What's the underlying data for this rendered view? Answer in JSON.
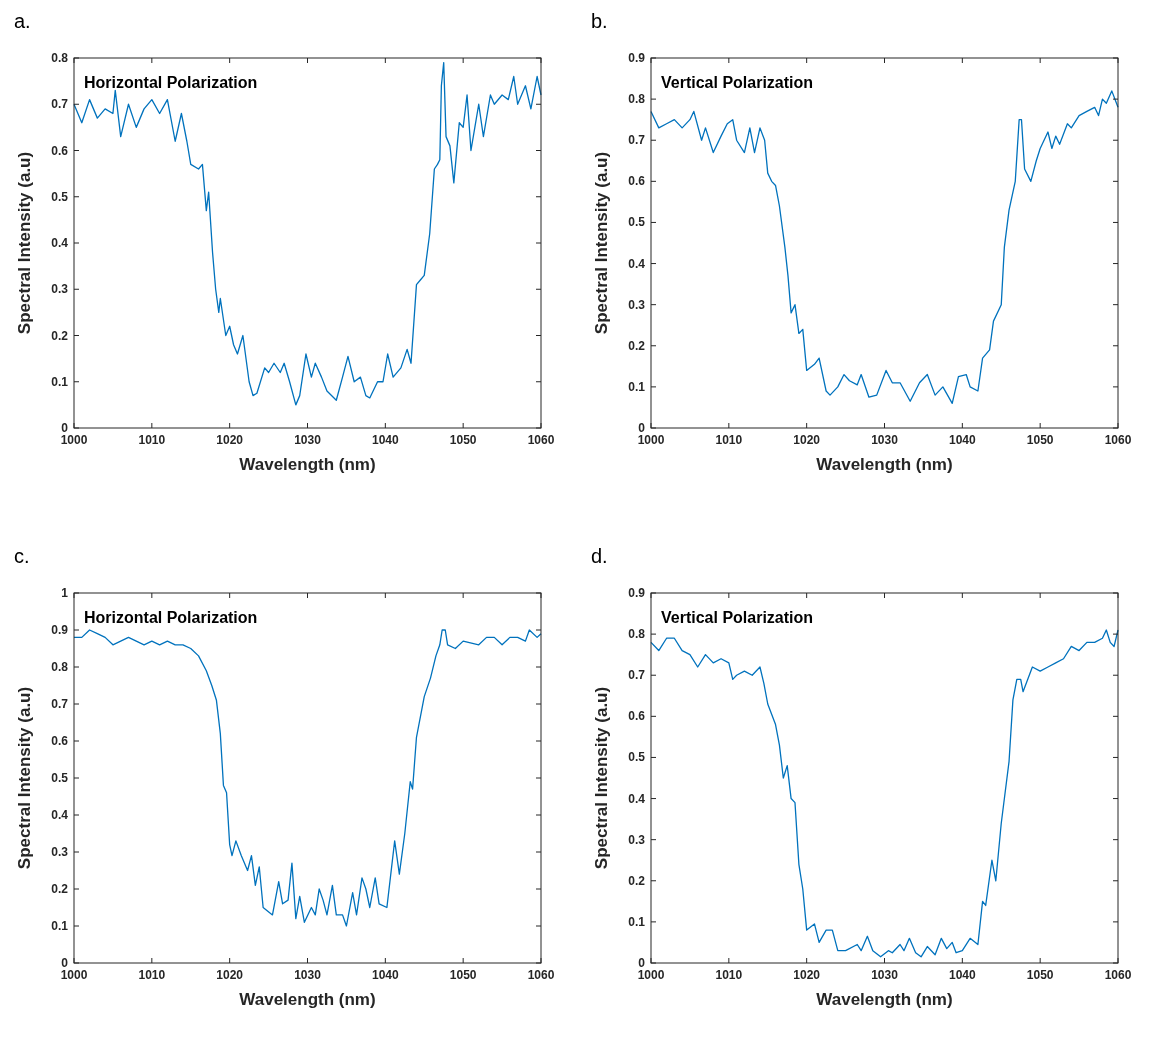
{
  "chart_data": [
    {
      "type": "line",
      "title": "a.",
      "annotations": [
        "Horizontal Polarization"
      ],
      "xlabel": "Wavelength (nm)",
      "ylabel": "Spectral Intensity (a.u)",
      "xlim": [
        1000,
        1060
      ],
      "xticks": [
        1000,
        1010,
        1020,
        1030,
        1040,
        1050,
        1060
      ],
      "ylim": [
        0,
        0.8
      ],
      "yticks": [
        0,
        0.1,
        0.2,
        0.3,
        0.4,
        0.5,
        0.6,
        0.7,
        0.8
      ],
      "series": [
        {
          "color": "#0072bd",
          "x": [
            1000,
            1001,
            1002,
            1003,
            1004,
            1005,
            1005.3,
            1006,
            1007,
            1008,
            1009,
            1010,
            1011,
            1012,
            1013,
            1013.8,
            1014.5,
            1015,
            1016,
            1016.5,
            1017,
            1017.3,
            1017.8,
            1018.2,
            1018.6,
            1018.8,
            1019.5,
            1020,
            1020.5,
            1021,
            1021.7,
            1022.5,
            1023,
            1023.5,
            1024.5,
            1025,
            1025.7,
            1026.5,
            1027,
            1027.7,
            1028.5,
            1029,
            1029.8,
            1030.5,
            1031,
            1031.8,
            1032.5,
            1033.7,
            1034.5,
            1035.2,
            1036,
            1036.8,
            1037.5,
            1038,
            1039,
            1039.7,
            1040.3,
            1041,
            1042,
            1042.8,
            1043.3,
            1044,
            1044.5,
            1045,
            1045.7,
            1046.3,
            1046.7,
            1047,
            1047.2,
            1047.5,
            1047.8,
            1048.3,
            1048.8,
            1049.5,
            1050,
            1050.5,
            1051,
            1051.5,
            1052,
            1052.6,
            1053.5,
            1054,
            1055,
            1055.8,
            1056.5,
            1057,
            1058,
            1058.7,
            1059.5,
            1060
          ],
          "values": [
            0.7,
            0.66,
            0.71,
            0.67,
            0.69,
            0.68,
            0.73,
            0.63,
            0.7,
            0.65,
            0.69,
            0.71,
            0.68,
            0.71,
            0.62,
            0.68,
            0.62,
            0.57,
            0.56,
            0.57,
            0.47,
            0.51,
            0.38,
            0.3,
            0.25,
            0.28,
            0.2,
            0.22,
            0.18,
            0.16,
            0.2,
            0.1,
            0.07,
            0.075,
            0.13,
            0.12,
            0.14,
            0.12,
            0.14,
            0.1,
            0.05,
            0.07,
            0.16,
            0.11,
            0.14,
            0.11,
            0.08,
            0.06,
            0.11,
            0.155,
            0.1,
            0.11,
            0.07,
            0.065,
            0.1,
            0.1,
            0.16,
            0.11,
            0.13,
            0.17,
            0.14,
            0.31,
            0.32,
            0.33,
            0.42,
            0.56,
            0.57,
            0.58,
            0.74,
            0.79,
            0.63,
            0.61,
            0.53,
            0.66,
            0.65,
            0.72,
            0.6,
            0.65,
            0.7,
            0.63,
            0.72,
            0.7,
            0.72,
            0.71,
            0.76,
            0.7,
            0.74,
            0.69,
            0.76,
            0.72
          ]
        }
      ]
    },
    {
      "type": "line",
      "title": "b.",
      "annotations": [
        "Vertical Polarization"
      ],
      "xlabel": "Wavelength (nm)",
      "ylabel": "Spectral Intensity (a.u)",
      "xlim": [
        1000,
        1060
      ],
      "xticks": [
        1000,
        1010,
        1020,
        1030,
        1040,
        1050,
        1060
      ],
      "ylim": [
        0,
        0.9
      ],
      "yticks": [
        0,
        0.1,
        0.2,
        0.3,
        0.4,
        0.5,
        0.6,
        0.7,
        0.8,
        0.9
      ],
      "series": [
        {
          "color": "#0072bd",
          "x": [
            1000,
            1001,
            1002,
            1003,
            1004,
            1005,
            1005.5,
            1006.5,
            1007,
            1008,
            1009,
            1009.8,
            1010.5,
            1011,
            1012,
            1012.7,
            1013.3,
            1014,
            1014.6,
            1015,
            1015.5,
            1016,
            1016.5,
            1017.2,
            1017.6,
            1018,
            1018.5,
            1019,
            1019.5,
            1020,
            1021,
            1021.6,
            1022.5,
            1023,
            1024,
            1024.8,
            1025.5,
            1026.5,
            1027,
            1028,
            1029,
            1030.2,
            1031,
            1032,
            1033.3,
            1034.5,
            1035.5,
            1036.5,
            1037.5,
            1038.7,
            1039.5,
            1040.5,
            1041,
            1042,
            1042.6,
            1043.5,
            1044,
            1045,
            1045.4,
            1046,
            1046.8,
            1047.3,
            1047.6,
            1048,
            1048.8,
            1049.5,
            1050,
            1051,
            1051.5,
            1052,
            1052.5,
            1053.5,
            1054,
            1055,
            1056,
            1057,
            1057.5,
            1058,
            1058.5,
            1059.2,
            1060
          ],
          "values": [
            0.77,
            0.73,
            0.74,
            0.75,
            0.73,
            0.75,
            0.77,
            0.7,
            0.73,
            0.67,
            0.71,
            0.74,
            0.75,
            0.7,
            0.67,
            0.73,
            0.67,
            0.73,
            0.7,
            0.62,
            0.6,
            0.59,
            0.54,
            0.44,
            0.37,
            0.28,
            0.3,
            0.23,
            0.24,
            0.14,
            0.155,
            0.17,
            0.09,
            0.08,
            0.1,
            0.13,
            0.115,
            0.105,
            0.13,
            0.075,
            0.08,
            0.14,
            0.11,
            0.11,
            0.065,
            0.11,
            0.13,
            0.08,
            0.1,
            0.06,
            0.125,
            0.13,
            0.1,
            0.09,
            0.17,
            0.19,
            0.26,
            0.3,
            0.44,
            0.53,
            0.6,
            0.75,
            0.75,
            0.63,
            0.6,
            0.65,
            0.68,
            0.72,
            0.68,
            0.71,
            0.69,
            0.74,
            0.73,
            0.76,
            0.77,
            0.78,
            0.76,
            0.8,
            0.79,
            0.82,
            0.78
          ]
        }
      ]
    },
    {
      "type": "line",
      "title": "c.",
      "annotations": [
        "Horizontal Polarization"
      ],
      "xlabel": "Wavelength (nm)",
      "ylabel": "Spectral Intensity (a.u)",
      "xlim": [
        1000,
        1060
      ],
      "xticks": [
        1000,
        1010,
        1020,
        1030,
        1040,
        1050,
        1060
      ],
      "ylim": [
        0,
        1
      ],
      "yticks": [
        0,
        0.1,
        0.2,
        0.3,
        0.4,
        0.5,
        0.6,
        0.7,
        0.8,
        0.9,
        1
      ],
      "series": [
        {
          "color": "#0072bd",
          "x": [
            1000,
            1001,
            1002,
            1003,
            1004,
            1005,
            1006,
            1007,
            1008,
            1009,
            1010,
            1011,
            1012,
            1013,
            1014,
            1015,
            1016,
            1017,
            1017.7,
            1018.3,
            1018.8,
            1019.2,
            1019.6,
            1020,
            1020.3,
            1020.8,
            1021.5,
            1022.3,
            1022.8,
            1023.3,
            1023.8,
            1024.3,
            1025.5,
            1026.3,
            1026.8,
            1027.5,
            1028,
            1028.5,
            1029,
            1029.6,
            1030.5,
            1031,
            1031.5,
            1032,
            1032.5,
            1033.2,
            1033.7,
            1034.5,
            1035,
            1035.8,
            1036.3,
            1037,
            1037.5,
            1038,
            1038.7,
            1039.2,
            1040.2,
            1041.2,
            1041.8,
            1042.5,
            1043.2,
            1043.5,
            1044,
            1045,
            1045.8,
            1046.5,
            1047,
            1047.3,
            1047.7,
            1048,
            1049,
            1050,
            1052,
            1053,
            1054,
            1055,
            1056,
            1057,
            1058,
            1058.5,
            1059.5,
            1060
          ],
          "values": [
            0.88,
            0.88,
            0.9,
            0.89,
            0.88,
            0.86,
            0.87,
            0.88,
            0.87,
            0.86,
            0.87,
            0.86,
            0.87,
            0.86,
            0.86,
            0.85,
            0.83,
            0.79,
            0.75,
            0.71,
            0.62,
            0.48,
            0.46,
            0.32,
            0.29,
            0.33,
            0.29,
            0.25,
            0.29,
            0.21,
            0.26,
            0.15,
            0.13,
            0.22,
            0.16,
            0.17,
            0.27,
            0.12,
            0.18,
            0.11,
            0.15,
            0.13,
            0.2,
            0.17,
            0.13,
            0.21,
            0.13,
            0.13,
            0.1,
            0.19,
            0.13,
            0.23,
            0.2,
            0.15,
            0.23,
            0.16,
            0.15,
            0.33,
            0.24,
            0.35,
            0.49,
            0.47,
            0.61,
            0.72,
            0.77,
            0.83,
            0.86,
            0.9,
            0.9,
            0.86,
            0.85,
            0.87,
            0.86,
            0.88,
            0.88,
            0.86,
            0.88,
            0.88,
            0.87,
            0.9,
            0.88,
            0.89
          ]
        }
      ]
    },
    {
      "type": "line",
      "title": "d.",
      "annotations": [
        "Vertical Polarization"
      ],
      "xlabel": "Wavelength (nm)",
      "ylabel": "Spectral Intensity (a.u)",
      "xlim": [
        1000,
        1060
      ],
      "xticks": [
        1000,
        1010,
        1020,
        1030,
        1040,
        1050,
        1060
      ],
      "ylim": [
        0,
        0.9
      ],
      "yticks": [
        0,
        0.1,
        0.2,
        0.3,
        0.4,
        0.5,
        0.6,
        0.7,
        0.8,
        0.9
      ],
      "series": [
        {
          "color": "#0072bd",
          "x": [
            1000,
            1001,
            1002,
            1003,
            1004,
            1005,
            1006,
            1007,
            1008,
            1009,
            1010,
            1010.5,
            1011,
            1012,
            1013,
            1014,
            1014.5,
            1015,
            1016,
            1016.5,
            1017,
            1017.5,
            1018,
            1018.5,
            1019,
            1019.5,
            1020,
            1021,
            1021.6,
            1022.5,
            1023.3,
            1024,
            1025,
            1026.5,
            1027,
            1027.8,
            1028.5,
            1029.5,
            1030.5,
            1031,
            1032,
            1032.5,
            1033.2,
            1034,
            1034.7,
            1035.5,
            1036.5,
            1037.3,
            1038,
            1038.7,
            1039.2,
            1040,
            1041,
            1042,
            1042.6,
            1043,
            1043.8,
            1044.3,
            1045,
            1046,
            1046.5,
            1047,
            1047.5,
            1047.8,
            1049,
            1050,
            1051,
            1052,
            1053,
            1054,
            1055,
            1056,
            1057,
            1058,
            1058.5,
            1059,
            1059.5,
            1060
          ],
          "values": [
            0.78,
            0.76,
            0.79,
            0.79,
            0.76,
            0.75,
            0.72,
            0.75,
            0.73,
            0.74,
            0.73,
            0.69,
            0.7,
            0.71,
            0.7,
            0.72,
            0.68,
            0.63,
            0.58,
            0.53,
            0.45,
            0.48,
            0.4,
            0.39,
            0.24,
            0.18,
            0.08,
            0.095,
            0.05,
            0.08,
            0.08,
            0.03,
            0.03,
            0.045,
            0.03,
            0.065,
            0.03,
            0.015,
            0.03,
            0.025,
            0.045,
            0.03,
            0.06,
            0.025,
            0.015,
            0.04,
            0.02,
            0.06,
            0.035,
            0.05,
            0.025,
            0.03,
            0.06,
            0.045,
            0.15,
            0.14,
            0.25,
            0.2,
            0.34,
            0.49,
            0.64,
            0.69,
            0.69,
            0.66,
            0.72,
            0.71,
            0.72,
            0.73,
            0.74,
            0.77,
            0.76,
            0.78,
            0.78,
            0.79,
            0.81,
            0.78,
            0.77,
            0.81
          ]
        }
      ]
    }
  ]
}
